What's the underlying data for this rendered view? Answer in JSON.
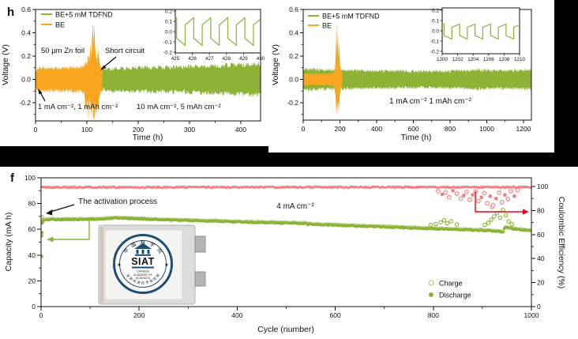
{
  "figure": {
    "background": "#000000",
    "panel_bg": "#ffffff"
  },
  "colors": {
    "green": "#8cb335",
    "orange": "#f8a61f",
    "pink": "#f47d7d",
    "red": "#e30613",
    "navy": "#1d4e74",
    "axis": "#111111"
  },
  "chart_data": [
    {
      "id": "h",
      "type": "line",
      "panel_label": "h",
      "xlabel": "Time (h)",
      "ylabel": "Voltage (V)",
      "xlim": [
        0,
        438
      ],
      "ylim": [
        -0.36,
        0.6
      ],
      "xticks": [
        0,
        100,
        200,
        300,
        400
      ],
      "yticks": [
        0.6,
        0.4,
        0.2,
        0.0,
        -0.2
      ],
      "legend": [
        {
          "name": "BE+5 mM TDFND",
          "color_key": "green"
        },
        {
          "name": "BE",
          "color_key": "orange"
        }
      ],
      "annotations": {
        "zn_foil": "50 μm Zn foil",
        "short_circuit": "Short circuit",
        "stage1": "1 mA cm⁻², 1 mAh cm⁻²",
        "stage2": "10 mA cm⁻², 5 mAh cm⁻²"
      },
      "series": [
        {
          "name": "BE+5 mM TDFND",
          "color_key": "green",
          "trange": [
            0,
            438
          ],
          "dt": 1.2,
          "amp": [
            [
              0,
              0.05
            ],
            [
              4,
              0.075
            ],
            [
              15,
              0.09
            ],
            [
              40,
              0.082
            ],
            [
              70,
              0.075
            ],
            [
              100,
              0.075
            ],
            [
              130,
              0.09
            ],
            [
              160,
              0.098
            ],
            [
              200,
              0.103
            ],
            [
              250,
              0.108
            ],
            [
              300,
              0.112
            ],
            [
              350,
              0.118
            ],
            [
              400,
              0.127
            ],
            [
              438,
              0.134
            ]
          ]
        },
        {
          "name": "BE",
          "color_key": "orange",
          "trange": [
            0,
            130
          ],
          "dt": 0.5,
          "upper": [
            [
              0,
              0.06
            ],
            [
              2,
              0.085
            ],
            [
              8,
              0.1
            ],
            [
              70,
              0.1
            ],
            [
              88,
              0.105
            ],
            [
              93,
              0.12
            ],
            [
              96,
              0.13
            ],
            [
              99,
              0.16
            ],
            [
              101,
              0.14
            ],
            [
              103,
              0.22
            ],
            [
              105,
              0.16
            ],
            [
              107,
              0.3
            ],
            [
              109,
              0.2
            ],
            [
              110.5,
              0.42
            ],
            [
              112,
              0.5
            ],
            [
              113,
              0.32
            ],
            [
              114.5,
              0.47
            ],
            [
              116,
              0.28
            ],
            [
              118,
              0.2
            ],
            [
              120,
              0.16
            ],
            [
              121.5,
              0.3
            ],
            [
              123,
              0.2
            ],
            [
              125,
              0.14
            ],
            [
              127,
              0.12
            ],
            [
              130,
              0.1
            ]
          ],
          "lower": [
            [
              0,
              -0.06
            ],
            [
              2,
              -0.085
            ],
            [
              8,
              -0.1
            ],
            [
              70,
              -0.1
            ],
            [
              88,
              -0.105
            ],
            [
              95,
              -0.12
            ],
            [
              99,
              -0.3
            ],
            [
              101,
              -0.17
            ],
            [
              103,
              -0.35
            ],
            [
              104.5,
              -0.18
            ],
            [
              107,
              -0.22
            ],
            [
              109,
              -0.33
            ],
            [
              111,
              -0.22
            ],
            [
              113,
              -0.35
            ],
            [
              115,
              -0.33
            ],
            [
              116.5,
              -0.18
            ],
            [
              118,
              -0.34
            ],
            [
              120,
              -0.22
            ],
            [
              122,
              -0.3
            ],
            [
              124,
              -0.15
            ],
            [
              126,
              -0.12
            ],
            [
              130,
              -0.1
            ]
          ]
        }
      ],
      "inset": {
        "xlim": [
          425,
          430
        ],
        "ylim": [
          -0.2,
          0.2
        ],
        "xticks": [
          425,
          426,
          427,
          428,
          429,
          430
        ],
        "yticks": [
          0.2,
          0.1,
          0.0,
          -0.1,
          -0.2
        ],
        "wave": {
          "phase": 0.08,
          "half_period": 0.5,
          "top": [
            0.065,
            0.135
          ],
          "bottom": [
            -0.065,
            -0.135
          ]
        }
      }
    },
    {
      "id": "i",
      "type": "line",
      "panel_label": "",
      "xlabel": "Time (h)",
      "ylabel": "Voltage (V)",
      "xlim": [
        0,
        1243
      ],
      "ylim": [
        -0.36,
        0.6
      ],
      "xticks": [
        0,
        200,
        400,
        600,
        800,
        1000,
        1200
      ],
      "yticks": [
        0.6,
        0.4,
        0.2,
        0.0,
        -0.2
      ],
      "legend": [
        {
          "name": "BE+5 mM TDFND",
          "color_key": "green"
        },
        {
          "name": "BE",
          "color_key": "orange"
        }
      ],
      "annotations": {
        "condition": "1 mA cm⁻²  1 mAh cm⁻²"
      },
      "series": [
        {
          "name": "BE+5 mM TDFND",
          "color_key": "green",
          "trange": [
            0,
            1243
          ],
          "dt": 2,
          "amp": [
            [
              0,
              0.092
            ],
            [
              40,
              0.088
            ],
            [
              120,
              0.084
            ],
            [
              250,
              0.079
            ],
            [
              400,
              0.075
            ],
            [
              550,
              0.072
            ],
            [
              700,
              0.071
            ],
            [
              820,
              0.075
            ],
            [
              900,
              0.079
            ],
            [
              980,
              0.081
            ],
            [
              1060,
              0.076
            ],
            [
              1150,
              0.078
            ],
            [
              1243,
              0.083
            ]
          ]
        },
        {
          "name": "BE",
          "color_key": "orange",
          "trange": [
            0,
            212
          ],
          "dt": 1,
          "upper": [
            [
              0,
              0.05
            ],
            [
              140,
              0.05
            ],
            [
              165,
              0.055
            ],
            [
              172,
              0.08
            ],
            [
              176,
              0.2
            ],
            [
              179,
              0.45
            ],
            [
              181,
              0.2
            ],
            [
              184,
              0.5
            ],
            [
              186,
              0.25
            ],
            [
              189,
              0.42
            ],
            [
              193,
              0.2
            ],
            [
              196,
              0.33
            ],
            [
              200,
              0.15
            ],
            [
              204,
              0.1
            ],
            [
              208,
              0.07
            ],
            [
              212,
              0.055
            ]
          ],
          "lower": [
            [
              0,
              -0.05
            ],
            [
              140,
              -0.05
            ],
            [
              168,
              -0.06
            ],
            [
              175,
              -0.12
            ],
            [
              179,
              -0.25
            ],
            [
              182,
              -0.33
            ],
            [
              185,
              -0.18
            ],
            [
              188,
              -0.3
            ],
            [
              192,
              -0.2
            ],
            [
              196,
              -0.26
            ],
            [
              200,
              -0.12
            ],
            [
              205,
              -0.08
            ],
            [
              212,
              -0.055
            ]
          ]
        }
      ],
      "inset": {
        "xlim": [
          1200,
          1210
        ],
        "ylim": [
          -0.2,
          0.2
        ],
        "xticks": [
          1200,
          1202,
          1204,
          1206,
          1208,
          1210
        ],
        "yticks": [
          0.2,
          0.1,
          0.0,
          -0.1,
          -0.2
        ],
        "wave": {
          "phase": 0.25,
          "half_period": 1.0,
          "top": [
            0.035,
            0.065
          ],
          "bottom": [
            -0.045,
            -0.08
          ]
        }
      }
    },
    {
      "id": "f",
      "type": "scatter",
      "panel_label": "f",
      "xlabel": "Cycle (number)",
      "ylabel": "Capacity (mA h)",
      "ylabel_right": "Coulombic Efficiency (%)",
      "xlim": [
        0,
        1000
      ],
      "ylim": [
        0,
        100
      ],
      "ylim_right": [
        0,
        100
      ],
      "xticks": [
        0,
        200,
        400,
        600,
        800,
        1000
      ],
      "yticks": [
        0,
        20,
        40,
        60,
        80,
        100
      ],
      "yticks_right": [
        0,
        20,
        40,
        60,
        80,
        100
      ],
      "annotations": {
        "activation": "The activation process",
        "current": "4 mA cm⁻²"
      },
      "legend": [
        {
          "name": "Charge",
          "marker": "open"
        },
        {
          "name": "Discharge",
          "marker": "filled"
        }
      ],
      "series": [
        {
          "name": "Coulombic Efficiency",
          "axis": "right",
          "color_key": "pink",
          "base": 99.4,
          "noise": 0.6,
          "outliers": [
            [
              810,
              96
            ],
            [
              818,
              93.5
            ],
            [
              825,
              95
            ],
            [
              832,
              91
            ],
            [
              840,
              96.5
            ],
            [
              848,
              94
            ],
            [
              856,
              90
            ],
            [
              862,
              92.5
            ],
            [
              868,
              95.5
            ],
            [
              874,
              89
            ],
            [
              880,
              93
            ],
            [
              886,
              96
            ],
            [
              892,
              88
            ],
            [
              898,
              91
            ],
            [
              904,
              94.5
            ],
            [
              910,
              86
            ],
            [
              916,
              92
            ],
            [
              920,
              83
            ],
            [
              922,
              84.5
            ],
            [
              928,
              90
            ],
            [
              934,
              95
            ],
            [
              940,
              87
            ],
            [
              946,
              93
            ],
            [
              952,
              89.5
            ],
            [
              958,
              96
            ],
            [
              965,
              92
            ],
            [
              972,
              97
            ]
          ]
        },
        {
          "name": "Discharge",
          "axis": "left",
          "color_key": "green",
          "noise": 0.45,
          "envelope": [
            [
              1,
              65.5
            ],
            [
              4,
              66.5
            ],
            [
              10,
              67.6
            ],
            [
              60,
              67.6
            ],
            [
              120,
              67.8
            ],
            [
              150,
              68.9
            ],
            [
              170,
              68.6
            ],
            [
              250,
              67.4
            ],
            [
              350,
              66.4
            ],
            [
              450,
              65.2
            ],
            [
              540,
              64.6
            ],
            [
              545,
              63.9
            ],
            [
              620,
              62.9
            ],
            [
              700,
              61.9
            ],
            [
              800,
              60.4
            ],
            [
              860,
              59.7
            ],
            [
              900,
              59.2
            ],
            [
              935,
              58.4
            ],
            [
              942,
              57.3
            ],
            [
              946,
              61.8
            ],
            [
              952,
              61.2
            ],
            [
              965,
              60.2
            ],
            [
              1000,
              58.9
            ]
          ],
          "early_points": [
            [
              1,
              39
            ],
            [
              1.5,
              55
            ],
            [
              2,
              57.5
            ],
            [
              2.5,
              65
            ]
          ]
        },
        {
          "name": "Charge",
          "axis": "left",
          "color_key": "green",
          "marker": "open",
          "outliers": [
            [
              1,
              69.5
            ],
            [
              795,
              63.5
            ],
            [
              805,
              64.2
            ],
            [
              815,
              65.5
            ],
            [
              822,
              67
            ],
            [
              828,
              64.8
            ],
            [
              836,
              66.2
            ],
            [
              848,
              63.8
            ],
            [
              905,
              63.5
            ],
            [
              912,
              65
            ],
            [
              918,
              67.5
            ],
            [
              924,
              70
            ],
            [
              930,
              72.5
            ],
            [
              936,
              69
            ],
            [
              942,
              75
            ],
            [
              948,
              71
            ],
            [
              954,
              66
            ],
            [
              960,
              64
            ]
          ]
        }
      ]
    }
  ],
  "photo": {
    "logo_main": "SIAT",
    "logo_sub1": "CHINESE",
    "logo_sub2": "ACADEMY OF",
    "logo_sub3": "SCIENCES",
    "arc_top": "中国科学院",
    "arc_bottom": "深圳先进技术研究院",
    "star": "★"
  }
}
